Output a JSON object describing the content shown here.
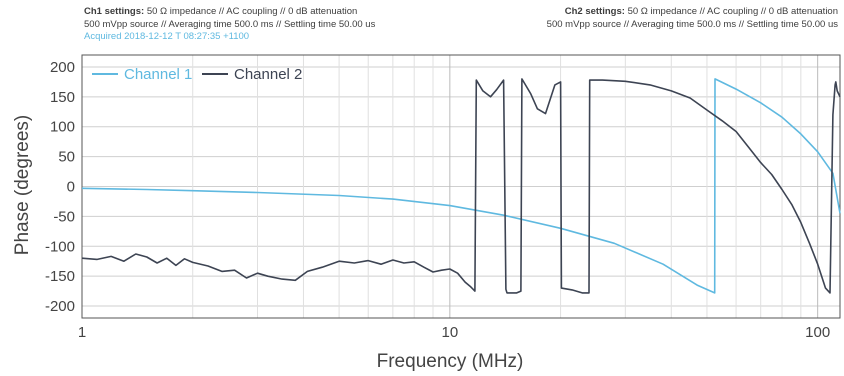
{
  "header": {
    "ch1": {
      "title": "Ch1 settings:",
      "line1": "50 Ω impedance  //  AC coupling  //  0 dB attenuation",
      "line2": "500 mVpp source  //  Averaging time 500.0 ms  //  Settling time 50.00 us",
      "acquired": "Acquired 2018-12-12 T 08:27:35 +1100"
    },
    "ch2": {
      "title": "Ch2 settings:",
      "line1": "50 Ω impedance  //  AC coupling  //  0 dB attenuation",
      "line2": "500 mVpp source  //  Averaging time 500.0 ms  //  Settling time 50.00 us"
    }
  },
  "colors": {
    "ch1": "#5fb9e0",
    "ch2": "#3d4453",
    "grid": "#cfcfcf",
    "axis": "#555555"
  },
  "chart_data": {
    "type": "line",
    "title": "",
    "xlabel": "Frequency (MHz)",
    "ylabel": "Phase (degrees)",
    "xscale": "log",
    "xlim": [
      1,
      115
    ],
    "ylim": [
      -220,
      220
    ],
    "yticks": [
      -200,
      -150,
      -100,
      -50,
      0,
      50,
      100,
      150,
      200
    ],
    "xticks": [
      1,
      10,
      100
    ],
    "grid": true,
    "legend": "top-left",
    "series": [
      {
        "name": "Channel 1",
        "color": "#5fb9e0",
        "x": [
          1,
          1.5,
          2,
          3,
          5,
          7,
          10,
          14,
          20,
          28,
          38,
          47,
          52.5,
          52.6,
          60,
          70,
          80,
          90,
          100,
          110,
          115
        ],
        "y": [
          -3,
          -5,
          -7,
          -10,
          -15,
          -21,
          -32,
          -48,
          -70,
          -95,
          -130,
          -165,
          -178,
          180,
          163,
          140,
          116,
          88,
          58,
          22,
          -45
        ]
      },
      {
        "name": "Channel 2",
        "color": "#3d4453",
        "x": [
          1,
          1.1,
          1.2,
          1.3,
          1.4,
          1.5,
          1.6,
          1.7,
          1.8,
          1.9,
          2,
          2.2,
          2.4,
          2.6,
          2.8,
          3,
          3.2,
          3.5,
          3.8,
          4.1,
          4.5,
          5,
          5.5,
          6,
          6.5,
          7,
          7.5,
          8,
          8.5,
          9,
          9.5,
          10,
          10.5,
          11,
          11.4,
          11.7,
          11.8,
          12.3,
          12.9,
          13.4,
          14,
          14.2,
          14.3,
          15.2,
          15.6,
          15.7,
          16.6,
          17.3,
          18.2,
          19.3,
          20,
          20.1,
          21.5,
          22.9,
          23.9,
          24.0,
          26,
          30,
          35,
          40,
          45,
          50,
          55,
          60,
          65,
          70,
          75,
          80,
          85,
          90,
          95,
          100,
          105,
          108,
          110,
          111.5,
          112,
          113,
          115
        ],
        "y": [
          -120,
          -122,
          -117,
          -125,
          -113,
          -118,
          -128,
          -120,
          -132,
          -121,
          -127,
          -133,
          -142,
          -140,
          -153,
          -145,
          -150,
          -155,
          -157,
          -142,
          -135,
          -125,
          -128,
          -124,
          -130,
          -123,
          -128,
          -126,
          -135,
          -143,
          -140,
          -138,
          -145,
          -160,
          -168,
          -175,
          178,
          160,
          150,
          162,
          178,
          -172,
          -178,
          -178,
          -175,
          180,
          155,
          130,
          122,
          170,
          175,
          -170,
          -173,
          -178,
          -178,
          178,
          178,
          176,
          170,
          160,
          148,
          128,
          110,
          92,
          65,
          40,
          20,
          -5,
          -30,
          -60,
          -95,
          -130,
          -170,
          -178,
          120,
          170,
          175,
          160,
          150
        ]
      }
    ]
  }
}
